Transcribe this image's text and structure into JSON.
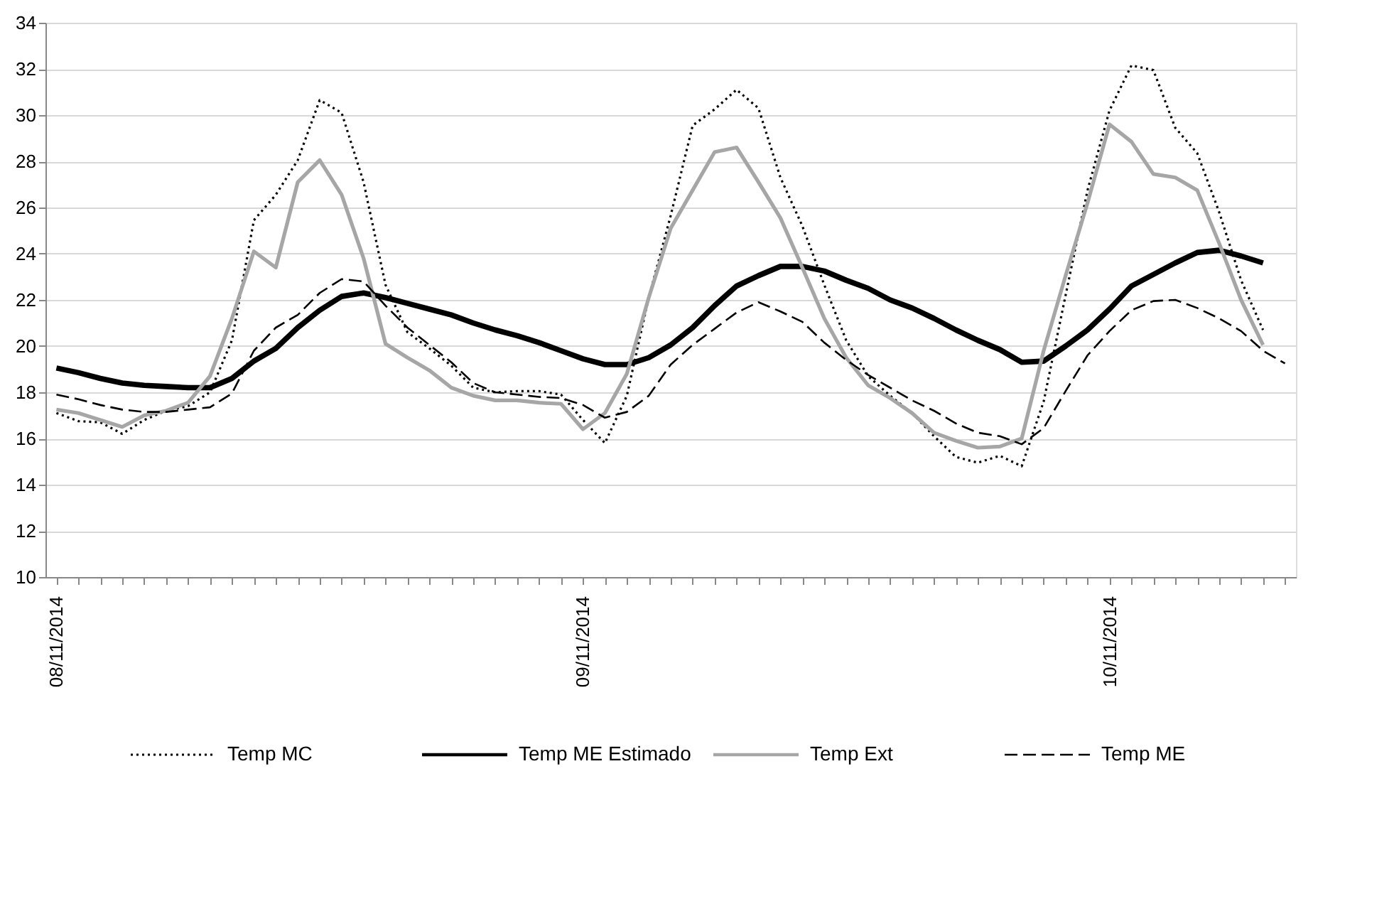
{
  "chart_data": {
    "type": "line",
    "categories": [
      "08/11/2014",
      null,
      null,
      null,
      null,
      null,
      null,
      null,
      null,
      null,
      null,
      null,
      null,
      null,
      null,
      null,
      null,
      null,
      null,
      null,
      null,
      null,
      null,
      null,
      "09/11/2014",
      null,
      null,
      null,
      null,
      null,
      null,
      null,
      null,
      null,
      null,
      null,
      null,
      null,
      null,
      null,
      null,
      null,
      null,
      null,
      null,
      null,
      null,
      null,
      "10/11/2014",
      null,
      null,
      null,
      null,
      null,
      null,
      null,
      null
    ],
    "series": [
      {
        "name": "Temp MC",
        "color": "#000000",
        "line_style": "dotted",
        "values": [
          17.1,
          16.75,
          16.7,
          16.2,
          16.8,
          17.2,
          17.4,
          18.0,
          20.25,
          25.45,
          26.55,
          28.05,
          30.65,
          30.1,
          27.1,
          22.65,
          20.6,
          19.9,
          19.15,
          18.2,
          18.0,
          18.05,
          18.05,
          17.9,
          16.8,
          15.8,
          17.85,
          22.1,
          25.65,
          29.55,
          30.25,
          31.1,
          30.3,
          27.3,
          25.2,
          22.65,
          20.25,
          18.7,
          17.85,
          17.1,
          16.1,
          15.2,
          14.95,
          15.25,
          14.8,
          17.6,
          22.2,
          26.75,
          30.2,
          32.15,
          31.95,
          29.45,
          28.35,
          25.8,
          22.85,
          20.7,
          null
        ]
      },
      {
        "name": "Temp ME Estimado",
        "color": "#000000",
        "line_style": "solid",
        "values": [
          19.05,
          18.85,
          18.6,
          18.4,
          18.3,
          18.25,
          18.2,
          18.2,
          18.6,
          19.35,
          19.9,
          20.8,
          21.55,
          22.15,
          22.3,
          22.1,
          21.85,
          21.6,
          21.35,
          21.0,
          20.7,
          20.45,
          20.15,
          19.8,
          19.45,
          19.2,
          19.2,
          19.5,
          20.05,
          20.8,
          21.75,
          22.6,
          23.05,
          23.45,
          23.45,
          23.25,
          22.85,
          22.5,
          22.0,
          21.65,
          21.2,
          20.7,
          20.25,
          19.85,
          19.3,
          19.35,
          20.0,
          20.7,
          21.6,
          22.6,
          23.1,
          23.6,
          24.05,
          24.15,
          23.9,
          23.6,
          null
        ]
      },
      {
        "name": "Temp Ext",
        "color": "#a6a6a6",
        "line_style": "solid",
        "values": [
          17.25,
          17.1,
          16.8,
          16.5,
          17.0,
          17.2,
          17.55,
          18.7,
          21.2,
          24.1,
          23.4,
          27.1,
          28.05,
          26.55,
          23.8,
          20.1,
          19.5,
          18.95,
          18.2,
          17.85,
          17.65,
          17.65,
          17.55,
          17.5,
          16.4,
          17.1,
          18.8,
          22.1,
          25.1,
          26.75,
          28.4,
          28.6,
          27.1,
          25.55,
          23.4,
          21.2,
          19.5,
          18.3,
          17.75,
          17.1,
          16.25,
          15.9,
          15.6,
          15.65,
          16.0,
          19.8,
          23.05,
          26.2,
          29.6,
          28.85,
          27.45,
          27.3,
          26.75,
          24.45,
          22.0,
          20.05,
          null
        ]
      },
      {
        "name": "Temp ME",
        "color": "#000000",
        "line_style": "dashed",
        "values": [
          17.9,
          17.7,
          17.45,
          17.25,
          17.15,
          17.15,
          17.25,
          17.35,
          17.95,
          19.8,
          20.8,
          21.35,
          22.3,
          22.9,
          22.8,
          21.75,
          20.8,
          20.05,
          19.3,
          18.4,
          18.0,
          17.9,
          17.8,
          17.75,
          17.45,
          16.9,
          17.15,
          17.85,
          19.2,
          20.05,
          20.75,
          21.45,
          21.9,
          21.5,
          21.05,
          20.15,
          19.4,
          18.75,
          18.2,
          17.65,
          17.2,
          16.65,
          16.25,
          16.1,
          15.75,
          16.45,
          18.05,
          19.6,
          20.65,
          21.55,
          21.95,
          22.0,
          21.65,
          21.2,
          20.65,
          19.8,
          19.25
        ]
      }
    ],
    "ylim": [
      10,
      34
    ],
    "yticks": [
      10,
      12,
      14,
      16,
      18,
      20,
      22,
      24,
      26,
      28,
      30,
      32,
      34
    ],
    "grid": "y",
    "legend": "bottom",
    "marker": "none"
  }
}
